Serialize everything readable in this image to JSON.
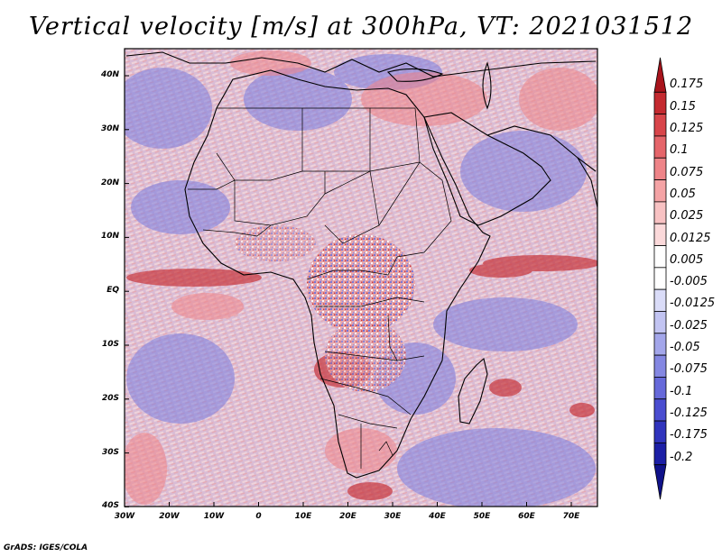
{
  "title": "Vertical velocity [m/s] at 300hPa, VT: 2021031512",
  "credit": "GrADS: IGES/COLA",
  "lat_labels": [
    "40N",
    "30N",
    "20N",
    "10N",
    "EQ",
    "10S",
    "20S",
    "30S",
    "40S"
  ],
  "lon_labels": [
    "30W",
    "20W",
    "10W",
    "0",
    "10E",
    "20E",
    "30E",
    "40E",
    "50E",
    "60E",
    "70E"
  ],
  "colorbar": {
    "labels": [
      "0.175",
      "0.15",
      "0.125",
      "0.1",
      "0.075",
      "0.05",
      "0.025",
      "0.0125",
      "0.005",
      "-0.005",
      "-0.0125",
      "-0.025",
      "-0.05",
      "-0.075",
      "-0.1",
      "-0.125",
      "-0.175",
      "-0.2"
    ],
    "colors": [
      "#a8141c",
      "#c42a30",
      "#d8454a",
      "#e5656a",
      "#ee8488",
      "#f4a3a5",
      "#f8c2c3",
      "#fbd9da",
      "#ffffff",
      "#ffffff",
      "#dadcf8",
      "#c2c4f2",
      "#a3a6ea",
      "#8487e2",
      "#6669da",
      "#4a4dd0",
      "#3034bd",
      "#1c1fa6",
      "#10128a"
    ]
  },
  "colors": {
    "positive": "#d8454a",
    "negative": "#6669da",
    "coastline": "#000000"
  }
}
